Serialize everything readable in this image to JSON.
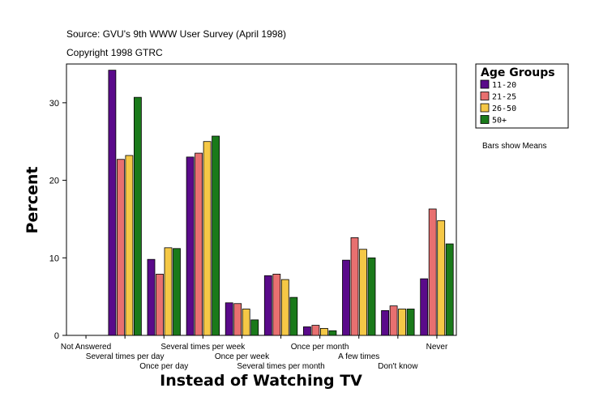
{
  "header": {
    "source": "Source: GVU's 9th WWW User Survey (April 1998)",
    "copyright": "Copyright 1998 GTRC"
  },
  "note": "Bars show Means",
  "colors": {
    "11-20": "#5a0a8a",
    "21-25": "#e87070",
    "26-50": "#f5c846",
    "50+": "#1a7a1a"
  },
  "chart_data": {
    "type": "bar",
    "xlabel": "Instead of Watching TV",
    "ylabel": "Percent",
    "ylim": [
      0,
      35
    ],
    "yticks": [
      0,
      10,
      20,
      30
    ],
    "grid": false,
    "legend_position": "right",
    "legend_title": "Age Groups",
    "categories": [
      "Not Answered",
      "Several times per day",
      "Once per day",
      "Several times per week",
      "Once per week",
      "Several times per month",
      "Once per month",
      "A few times",
      "Don't know",
      "Never"
    ],
    "series": [
      {
        "name": "11-20",
        "values": [
          0,
          34.2,
          9.8,
          23.0,
          4.2,
          7.7,
          1.1,
          9.7,
          3.2,
          7.3
        ]
      },
      {
        "name": "21-25",
        "values": [
          0,
          22.7,
          7.9,
          23.5,
          4.1,
          7.9,
          1.3,
          12.6,
          3.8,
          16.3
        ]
      },
      {
        "name": "26-50",
        "values": [
          0,
          23.2,
          11.3,
          25.0,
          3.4,
          7.2,
          0.9,
          11.1,
          3.4,
          14.8
        ]
      },
      {
        "name": "50+",
        "values": [
          0,
          30.7,
          11.2,
          25.7,
          2.0,
          4.9,
          0.6,
          10.0,
          3.4,
          11.8
        ]
      }
    ]
  }
}
